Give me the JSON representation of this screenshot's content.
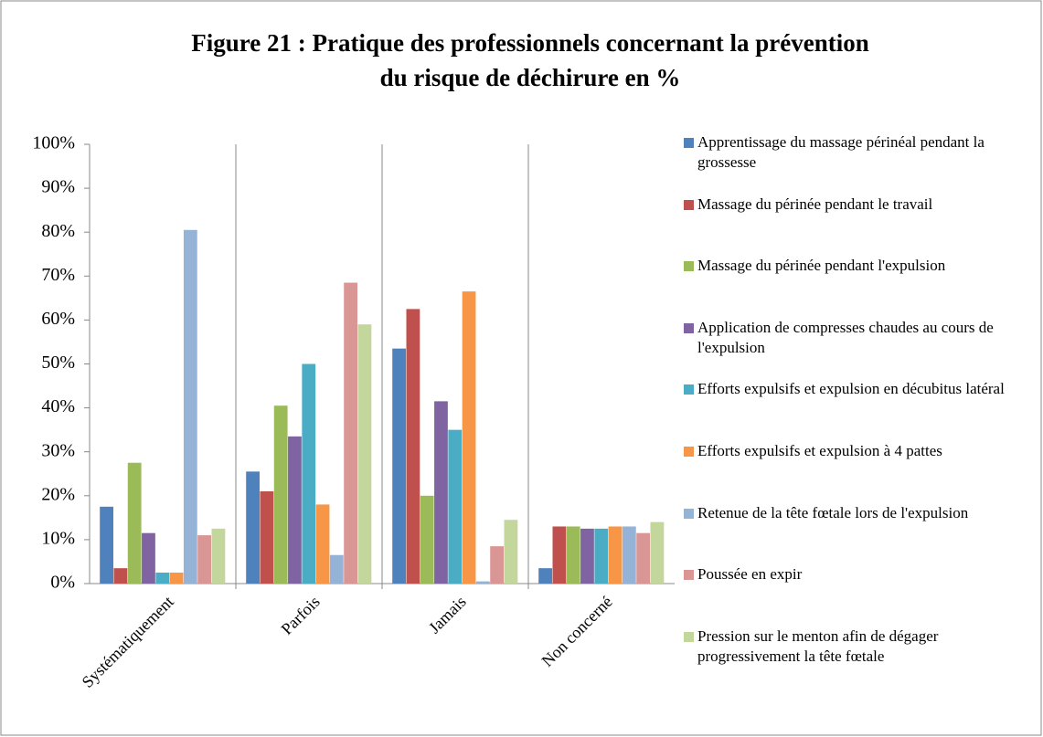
{
  "chart_data": {
    "type": "bar",
    "title": [
      "Figure 21 : Pratique des professionnels concernant la prévention",
      "du risque de déchirure en %"
    ],
    "categories": [
      "Systématiquement",
      "Parfois",
      "Jamais",
      "Non concerné"
    ],
    "series": [
      {
        "name": "Apprentissage du massage périnéal pendant la grossesse",
        "color": "#4f81bd",
        "values": [
          17.5,
          25.5,
          53.5,
          3.5
        ]
      },
      {
        "name": "Massage du périnée pendant le travail",
        "color": "#c0504d",
        "values": [
          3.5,
          21,
          62.5,
          13
        ]
      },
      {
        "name": "Massage du périnée pendant l'expulsion",
        "color": "#9bbb59",
        "values": [
          27.5,
          40.5,
          20,
          13
        ]
      },
      {
        "name": "Application de compresses chaudes au cours de l'expulsion",
        "color": "#8064a2",
        "values": [
          11.5,
          33.5,
          41.5,
          12.5
        ]
      },
      {
        "name": "Efforts expulsifs et expulsion en décubitus latéral",
        "color": "#4bacc6",
        "values": [
          2.5,
          50,
          35,
          12.5
        ]
      },
      {
        "name": "Efforts expulsifs et expulsion à 4 pattes",
        "color": "#f79646",
        "values": [
          2.5,
          18,
          66.5,
          13
        ]
      },
      {
        "name": "Retenue de la tête fœtale lors de l'expulsion",
        "color": "#95b3d7",
        "values": [
          80.5,
          6.5,
          0.5,
          13
        ]
      },
      {
        "name": "Poussée en expir",
        "color": "#da9694",
        "values": [
          11,
          68.5,
          8.5,
          11.5
        ]
      },
      {
        "name": "Pression sur le menton afin de dégager progressivement la tête fœtale",
        "color": "#c3d69b",
        "values": [
          12.5,
          59,
          14.5,
          14
        ]
      }
    ],
    "ylim": [
      0,
      100
    ],
    "yticks": [
      {
        "value": 0,
        "label": "0%"
      },
      {
        "value": 10,
        "label": "10%"
      },
      {
        "value": 20,
        "label": "20%"
      },
      {
        "value": 30,
        "label": "30%"
      },
      {
        "value": 40,
        "label": "40%"
      },
      {
        "value": 50,
        "label": "50%"
      },
      {
        "value": 60,
        "label": "60%"
      },
      {
        "value": 70,
        "label": "70%"
      },
      {
        "value": 80,
        "label": "80%"
      },
      {
        "value": 90,
        "label": "90%"
      },
      {
        "value": 100,
        "label": "100%"
      }
    ],
    "legend": "right"
  }
}
